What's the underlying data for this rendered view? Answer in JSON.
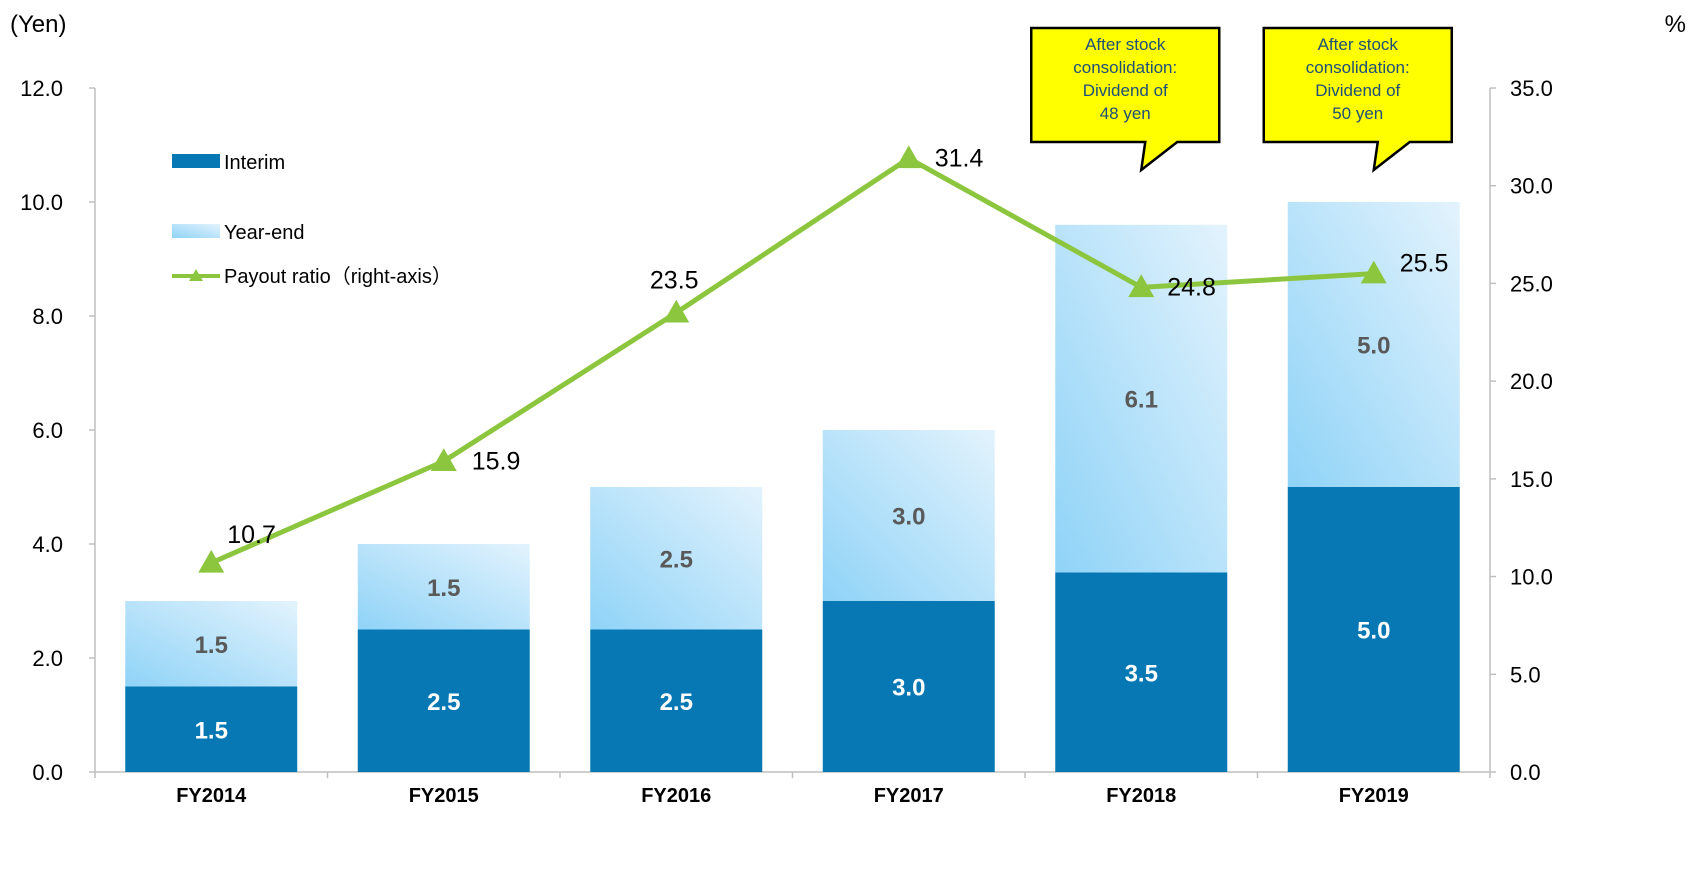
{
  "chart_data": {
    "type": "bar",
    "stacked": true,
    "categories": [
      "FY2014",
      "FY2015",
      "FY2016",
      "FY2017",
      "FY2018",
      "FY2019"
    ],
    "series": [
      {
        "name": "Interim",
        "values": [
          1.5,
          2.5,
          2.5,
          3.0,
          3.5,
          5.0
        ],
        "labels": [
          "1.5",
          "2.5",
          "2.5",
          "3.0",
          "3.5",
          "5.0"
        ],
        "color": "#0878b4"
      },
      {
        "name": "Year-end",
        "values": [
          1.5,
          1.5,
          2.5,
          3.0,
          6.1,
          5.0
        ],
        "labels": [
          "1.5",
          "1.5",
          "2.5",
          "3.0",
          "6.1",
          "5.0"
        ],
        "color": "#9fd8f6"
      }
    ],
    "line_series": {
      "name": "Payout ratio（right-axis）",
      "axis": "right",
      "values": [
        10.7,
        15.9,
        23.5,
        31.4,
        24.8,
        25.5
      ],
      "labels": [
        "10.7",
        "15.9",
        "23.5",
        "31.4",
        "24.8",
        "25.5"
      ],
      "color": "#8cc63f",
      "marker": "triangle"
    },
    "y_left": {
      "unit_label": "(Yen)",
      "range": [
        0,
        12
      ],
      "ticks": [
        "0.0",
        "2.0",
        "4.0",
        "6.0",
        "8.0",
        "10.0",
        "12.0"
      ]
    },
    "y_right": {
      "unit_label": "%",
      "range": [
        0,
        35
      ],
      "ticks": [
        "0.0",
        "5.0",
        "10.0",
        "15.0",
        "20.0",
        "25.0",
        "30.0",
        "35.0"
      ]
    },
    "legend": {
      "placement": "top-left",
      "items": [
        "Interim",
        "Year-end",
        "Payout ratio（right-axis）"
      ]
    },
    "annotations": [
      {
        "category": "FY2018",
        "lines": [
          "After stock",
          "consolidation:",
          "Dividend of",
          "48 yen"
        ]
      },
      {
        "category": "FY2019",
        "lines": [
          "After stock",
          "consolidation:",
          "Dividend of",
          "50 yen"
        ]
      }
    ],
    "grid": false,
    "colors": {
      "label_on_interim": "#ffffff",
      "label_on_yearend": "#595959",
      "axis": "#bfbfbf",
      "callout_fill": "#ffff00",
      "callout_border": "#000000",
      "callout_text": "#1f4e79"
    }
  }
}
